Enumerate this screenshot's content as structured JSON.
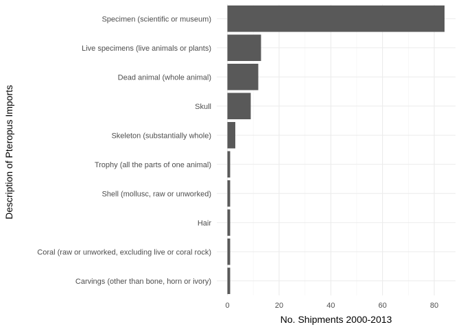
{
  "chart_data": {
    "type": "bar",
    "orientation": "horizontal",
    "title": "",
    "xlabel": "No. Shipments 2000-2013",
    "ylabel": "Description of Pteropus Imports",
    "categories": [
      "Specimen (scientific or museum)",
      "Live specimens (live animals or plants)",
      "Dead animal (whole animal)",
      "Skull",
      "Skeleton (substantially whole)",
      "Trophy (all the parts of one animal)",
      "Shell (mollusc, raw or unworked)",
      "Hair",
      "Coral (raw or unworked, excluding live or coral rock)",
      "Carvings (other than bone, horn or ivory)"
    ],
    "values": [
      84,
      13,
      12,
      9,
      3,
      1,
      1,
      1,
      1,
      1
    ],
    "xlim": [
      0,
      88
    ],
    "xticks": [
      0,
      20,
      40,
      60,
      80
    ],
    "grid": true,
    "bar_color": "#595959",
    "grid_color": "#ebebeb",
    "background": "#ffffff"
  }
}
